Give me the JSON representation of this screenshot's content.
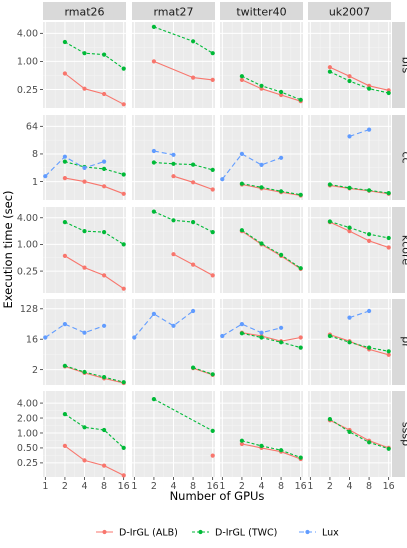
{
  "chart_data": {
    "type": "line",
    "facet_columns": [
      "rmat26",
      "rmat27",
      "twitter40",
      "uk2007"
    ],
    "facet_rows": [
      "bfs",
      "cc",
      "kcore",
      "pr",
      "sssp"
    ],
    "xlabel": "Number of GPUs",
    "ylabel": "Execution time (sec)",
    "x_ticks": [
      "1",
      "2",
      "4",
      "8",
      "16"
    ],
    "x_scale": "log2",
    "y_scale": "log",
    "legend_position": "bottom",
    "colors": {
      "D-IrGL (ALB)": "#f8766d",
      "D-IrGL (TWC)": "#00ba38",
      "Lux": "#619cff"
    },
    "line_styles": {
      "D-IrGL (ALB)": "solid",
      "D-IrGL (TWC)": "dotted",
      "Lux": "dashed"
    },
    "series_names": [
      "D-IrGL (ALB)",
      "D-IrGL (TWC)",
      "Lux"
    ],
    "rows": {
      "bfs": {
        "y_ticks": [
          "0.25",
          "1.00",
          "4.00"
        ],
        "ylim": [
          0.1,
          7
        ]
      },
      "cc": {
        "y_ticks": [
          "1",
          "8",
          "64"
        ],
        "ylim": [
          0.25,
          150
        ]
      },
      "kcore": {
        "y_ticks": [
          "0.25",
          "1.00",
          "4.00"
        ],
        "ylim": [
          0.08,
          7
        ]
      },
      "pr": {
        "y_ticks": [
          "2",
          "16",
          "128"
        ],
        "ylim": [
          0.7,
          250
        ]
      },
      "sssp": {
        "y_ticks": [
          "0.25",
          "0.50",
          "1.00",
          "2.00",
          "4.00"
        ],
        "ylim": [
          0.13,
          7
        ]
      }
    },
    "series": [
      {
        "row": "bfs",
        "col": "rmat26",
        "name": "D-IrGL (ALB)",
        "x": [
          2,
          4,
          8,
          16
        ],
        "y": [
          0.55,
          0.26,
          0.2,
          0.12
        ]
      },
      {
        "row": "bfs",
        "col": "rmat26",
        "name": "D-IrGL (TWC)",
        "x": [
          2,
          4,
          8,
          16
        ],
        "y": [
          2.6,
          1.5,
          1.4,
          0.7
        ]
      },
      {
        "row": "bfs",
        "col": "rmat27",
        "name": "D-IrGL (ALB)",
        "x": [
          2,
          8,
          16
        ],
        "y": [
          1.0,
          0.45,
          0.4
        ]
      },
      {
        "row": "bfs",
        "col": "rmat27",
        "name": "D-IrGL (TWC)",
        "x": [
          2,
          8,
          16
        ],
        "y": [
          5.5,
          2.7,
          1.5
        ]
      },
      {
        "row": "bfs",
        "col": "twitter40",
        "name": "D-IrGL (ALB)",
        "x": [
          2,
          4,
          8,
          16
        ],
        "y": [
          0.4,
          0.26,
          0.19,
          0.14
        ]
      },
      {
        "row": "bfs",
        "col": "twitter40",
        "name": "D-IrGL (TWC)",
        "x": [
          2,
          4,
          8,
          16
        ],
        "y": [
          0.48,
          0.3,
          0.22,
          0.15
        ]
      },
      {
        "row": "bfs",
        "col": "uk2007",
        "name": "D-IrGL (ALB)",
        "x": [
          2,
          4,
          8,
          16
        ],
        "y": [
          0.75,
          0.48,
          0.3,
          0.24
        ]
      },
      {
        "row": "bfs",
        "col": "uk2007",
        "name": "D-IrGL (TWC)",
        "x": [
          2,
          4,
          8,
          16
        ],
        "y": [
          0.6,
          0.38,
          0.26,
          0.21
        ]
      },
      {
        "row": "cc",
        "col": "rmat26",
        "name": "D-IrGL (ALB)",
        "x": [
          2,
          4,
          8,
          16
        ],
        "y": [
          1.3,
          1.0,
          0.7,
          0.4
        ]
      },
      {
        "row": "cc",
        "col": "rmat26",
        "name": "D-IrGL (TWC)",
        "x": [
          2,
          4,
          8,
          16
        ],
        "y": [
          4.5,
          3.0,
          2.6,
          1.7
        ]
      },
      {
        "row": "cc",
        "col": "rmat26",
        "name": "Lux",
        "x": [
          1,
          2,
          4,
          8
        ],
        "y": [
          1.5,
          6.5,
          2.8,
          4.5
        ]
      },
      {
        "row": "cc",
        "col": "rmat27",
        "name": "D-IrGL (ALB)",
        "x": [
          4,
          8,
          16
        ],
        "y": [
          1.5,
          0.95,
          0.55
        ]
      },
      {
        "row": "cc",
        "col": "rmat27",
        "name": "D-IrGL (TWC)",
        "x": [
          2,
          4,
          8,
          16
        ],
        "y": [
          4.2,
          3.8,
          3.6,
          2.4
        ]
      },
      {
        "row": "cc",
        "col": "rmat27",
        "name": "Lux",
        "x": [
          2,
          4
        ],
        "y": [
          10,
          7.5
        ]
      },
      {
        "row": "cc",
        "col": "twitter40",
        "name": "D-IrGL (ALB)",
        "x": [
          2,
          4,
          8,
          16
        ],
        "y": [
          0.8,
          0.6,
          0.45,
          0.35
        ]
      },
      {
        "row": "cc",
        "col": "twitter40",
        "name": "D-IrGL (TWC)",
        "x": [
          2,
          4,
          8,
          16
        ],
        "y": [
          0.85,
          0.65,
          0.48,
          0.37
        ]
      },
      {
        "row": "cc",
        "col": "twitter40",
        "name": "Lux",
        "x": [
          1,
          2,
          4,
          8
        ],
        "y": [
          1.2,
          8,
          3.5,
          6
        ]
      },
      {
        "row": "cc",
        "col": "uk2007",
        "name": "D-IrGL (ALB)",
        "x": [
          2,
          4,
          8,
          16
        ],
        "y": [
          0.75,
          0.6,
          0.5,
          0.4
        ]
      },
      {
        "row": "cc",
        "col": "uk2007",
        "name": "D-IrGL (TWC)",
        "x": [
          2,
          4,
          8,
          16
        ],
        "y": [
          0.8,
          0.62,
          0.52,
          0.42
        ]
      },
      {
        "row": "cc",
        "col": "uk2007",
        "name": "Lux",
        "x": [
          4,
          8
        ],
        "y": [
          30,
          50
        ]
      },
      {
        "row": "kcore",
        "col": "rmat26",
        "name": "D-IrGL (ALB)",
        "x": [
          2,
          4,
          8,
          16
        ],
        "y": [
          0.55,
          0.3,
          0.2,
          0.1
        ]
      },
      {
        "row": "kcore",
        "col": "rmat26",
        "name": "D-IrGL (TWC)",
        "x": [
          2,
          4,
          8,
          16
        ],
        "y": [
          3.2,
          2.0,
          1.9,
          1.0
        ]
      },
      {
        "row": "kcore",
        "col": "rmat27",
        "name": "D-IrGL (ALB)",
        "x": [
          4,
          8,
          16
        ],
        "y": [
          0.6,
          0.35,
          0.2
        ]
      },
      {
        "row": "kcore",
        "col": "rmat27",
        "name": "D-IrGL (TWC)",
        "x": [
          2,
          4,
          8,
          16
        ],
        "y": [
          5.5,
          3.5,
          3.2,
          1.9
        ]
      },
      {
        "row": "kcore",
        "col": "twitter40",
        "name": "D-IrGL (ALB)",
        "x": [
          2,
          4,
          8,
          16
        ],
        "y": [
          2.0,
          1.0,
          0.55,
          0.28
        ]
      },
      {
        "row": "kcore",
        "col": "twitter40",
        "name": "D-IrGL (TWC)",
        "x": [
          2,
          4,
          8,
          16
        ],
        "y": [
          2.1,
          1.05,
          0.58,
          0.29
        ]
      },
      {
        "row": "kcore",
        "col": "uk2007",
        "name": "D-IrGL (ALB)",
        "x": [
          2,
          4,
          8,
          16
        ],
        "y": [
          3.2,
          2.0,
          1.2,
          0.85
        ]
      },
      {
        "row": "kcore",
        "col": "uk2007",
        "name": "D-IrGL (TWC)",
        "x": [
          2,
          4,
          8,
          16
        ],
        "y": [
          3.3,
          2.4,
          1.7,
          1.4
        ]
      },
      {
        "row": "pr",
        "col": "rmat26",
        "name": "D-IrGL (ALB)",
        "x": [
          2,
          4,
          8,
          16
        ],
        "y": [
          2.5,
          1.6,
          1.1,
          0.8
        ]
      },
      {
        "row": "pr",
        "col": "rmat26",
        "name": "D-IrGL (TWC)",
        "x": [
          2,
          4,
          8,
          16
        ],
        "y": [
          2.6,
          1.7,
          1.2,
          0.85
        ]
      },
      {
        "row": "pr",
        "col": "rmat26",
        "name": "Lux",
        "x": [
          1,
          2,
          4,
          8
        ],
        "y": [
          18,
          45,
          25,
          40
        ]
      },
      {
        "row": "pr",
        "col": "rmat27",
        "name": "D-IrGL (ALB)",
        "x": [
          8,
          16
        ],
        "y": [
          2.2,
          1.4
        ]
      },
      {
        "row": "pr",
        "col": "rmat27",
        "name": "D-IrGL (TWC)",
        "x": [
          8,
          16
        ],
        "y": [
          2.3,
          1.45
        ]
      },
      {
        "row": "pr",
        "col": "rmat27",
        "name": "Lux",
        "x": [
          1,
          2,
          4,
          8
        ],
        "y": [
          18,
          90,
          40,
          110
        ]
      },
      {
        "row": "pr",
        "col": "twitter40",
        "name": "D-IrGL (ALB)",
        "x": [
          2,
          4,
          8,
          16
        ],
        "y": [
          25,
          20,
          14,
          18
        ]
      },
      {
        "row": "pr",
        "col": "twitter40",
        "name": "D-IrGL (TWC)",
        "x": [
          2,
          4,
          8,
          16
        ],
        "y": [
          24,
          18,
          13,
          9
        ]
      },
      {
        "row": "pr",
        "col": "twitter40",
        "name": "Lux",
        "x": [
          1,
          2,
          4,
          8
        ],
        "y": [
          20,
          45,
          25,
          35
        ]
      },
      {
        "row": "pr",
        "col": "uk2007",
        "name": "D-IrGL (ALB)",
        "x": [
          2,
          4,
          8,
          16
        ],
        "y": [
          22,
          14,
          8,
          5.5
        ]
      },
      {
        "row": "pr",
        "col": "uk2007",
        "name": "D-IrGL (TWC)",
        "x": [
          2,
          4,
          8,
          16
        ],
        "y": [
          20,
          13,
          9,
          7
        ]
      },
      {
        "row": "pr",
        "col": "uk2007",
        "name": "Lux",
        "x": [
          4,
          8
        ],
        "y": [
          70,
          110
        ]
      },
      {
        "row": "sssp",
        "col": "rmat26",
        "name": "D-IrGL (ALB)",
        "x": [
          2,
          4,
          8,
          16
        ],
        "y": [
          0.55,
          0.28,
          0.22,
          0.14
        ]
      },
      {
        "row": "sssp",
        "col": "rmat26",
        "name": "D-IrGL (TWC)",
        "x": [
          2,
          4,
          8,
          16
        ],
        "y": [
          2.4,
          1.3,
          1.15,
          0.5
        ]
      },
      {
        "row": "sssp",
        "col": "rmat27",
        "name": "D-IrGL (ALB)",
        "x": [
          16
        ],
        "y": [
          0.35
        ]
      },
      {
        "row": "sssp",
        "col": "rmat27",
        "name": "D-IrGL (TWC)",
        "x": [
          2,
          16
        ],
        "y": [
          4.8,
          1.1
        ]
      },
      {
        "row": "sssp",
        "col": "twitter40",
        "name": "D-IrGL (ALB)",
        "x": [
          2,
          4,
          8,
          16
        ],
        "y": [
          0.6,
          0.5,
          0.42,
          0.3
        ]
      },
      {
        "row": "sssp",
        "col": "twitter40",
        "name": "D-IrGL (TWC)",
        "x": [
          2,
          4,
          8,
          16
        ],
        "y": [
          0.7,
          0.55,
          0.45,
          0.32
        ]
      },
      {
        "row": "sssp",
        "col": "uk2007",
        "name": "D-IrGL (ALB)",
        "x": [
          2,
          4,
          8,
          16
        ],
        "y": [
          1.8,
          1.15,
          0.7,
          0.5
        ]
      },
      {
        "row": "sssp",
        "col": "uk2007",
        "name": "D-IrGL (TWC)",
        "x": [
          2,
          4,
          8,
          16
        ],
        "y": [
          1.9,
          1.05,
          0.65,
          0.48
        ]
      }
    ]
  }
}
